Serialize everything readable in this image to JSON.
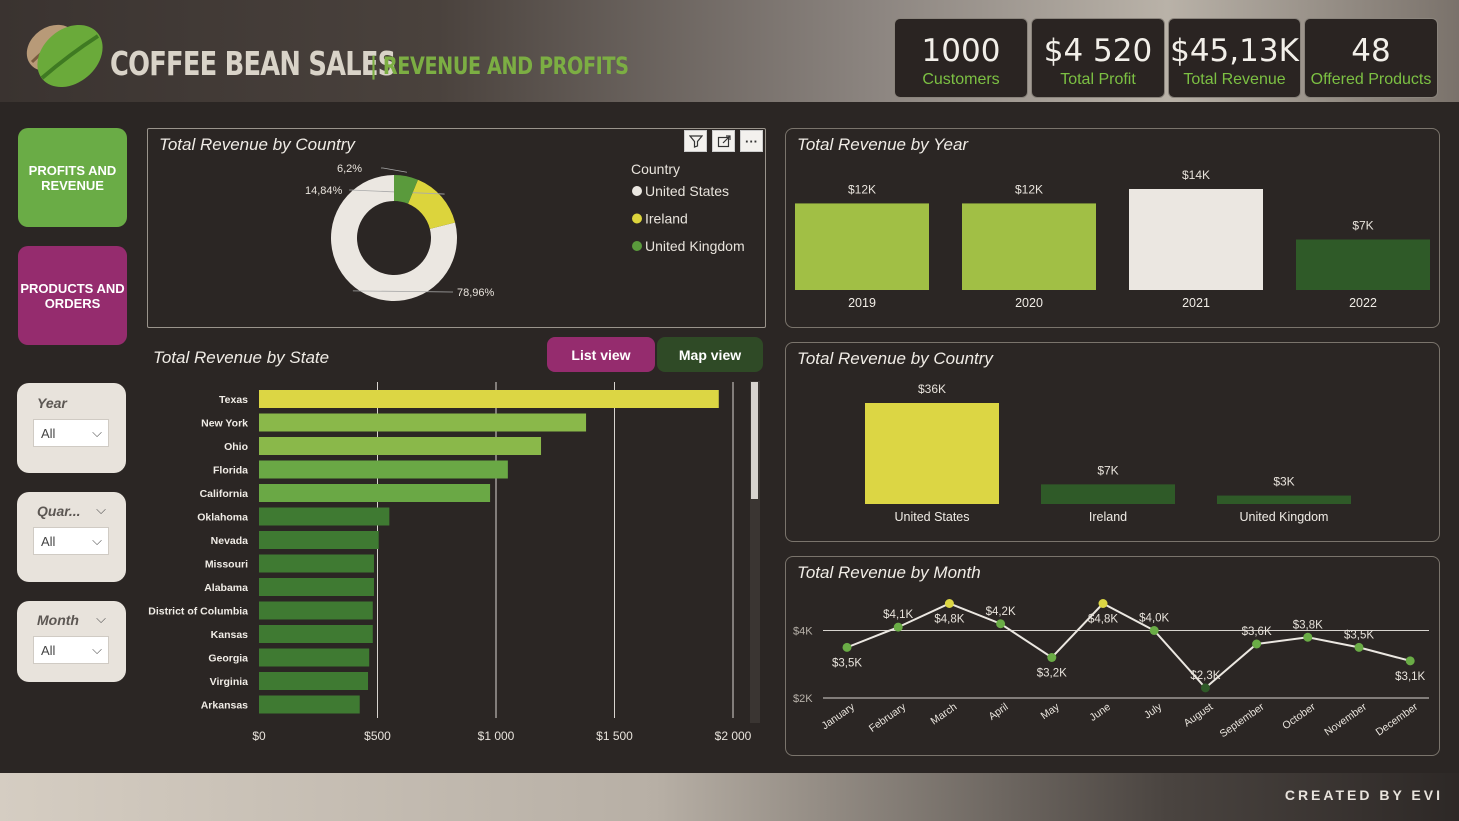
{
  "header": {
    "title": "COFFEE BEAN SALES",
    "subtitle": "| REVENUE AND PROFITS",
    "kpis": [
      {
        "value": "1000",
        "label": "Customers"
      },
      {
        "value": "$4 520",
        "label": "Total Profit"
      },
      {
        "value": "$45,13K",
        "label": "Total Revenue"
      },
      {
        "value": "48",
        "label": "Offered Products"
      }
    ]
  },
  "nav": {
    "profits_revenue": "PROFITS AND REVENUE",
    "products_orders": "PRODUCTS AND ORDERS"
  },
  "slicers": {
    "year": {
      "label": "Year",
      "value": "All"
    },
    "quarter": {
      "label": "Quar...",
      "value": "All"
    },
    "month": {
      "label": "Month",
      "value": "All"
    }
  },
  "donut": {
    "title": "Total Revenue by Country",
    "legend_title": "Country",
    "items": [
      {
        "name": "United States",
        "pct": 78.96,
        "label": "78,96%",
        "color": "#ebe7e1"
      },
      {
        "name": "Ireland",
        "pct": 14.84,
        "label": "14,84%",
        "color": "#dcd43c"
      },
      {
        "name": "United Kingdom",
        "pct": 6.2,
        "label": "6,2%",
        "color": "#5a9a3c"
      }
    ]
  },
  "state": {
    "title": "Total Revenue by State",
    "list_view": "List view",
    "map_view": "Map view"
  },
  "year_chart": {
    "title": "Total Revenue by Year"
  },
  "country_chart": {
    "title": "Total Revenue by Country"
  },
  "month_chart": {
    "title": "Total Revenue by Month"
  },
  "footer": {
    "credit": "CREATED BY EVI"
  },
  "chart_data": [
    {
      "type": "pie",
      "title": "Total Revenue by Country",
      "categories": [
        "United States",
        "Ireland",
        "United Kingdom"
      ],
      "values": [
        78.96,
        14.84,
        6.2
      ],
      "legend": "right"
    },
    {
      "type": "bar",
      "orientation": "horizontal",
      "title": "Total Revenue by State",
      "categories": [
        "Texas",
        "New York",
        "Ohio",
        "Florida",
        "California",
        "Oklahoma",
        "Nevada",
        "Missouri",
        "Alabama",
        "District of Columbia",
        "Kansas",
        "Georgia",
        "Virginia",
        "Arkansas"
      ],
      "values": [
        1940,
        1380,
        1190,
        1050,
        975,
        550,
        505,
        485,
        485,
        480,
        480,
        465,
        460,
        425
      ],
      "xlim": [
        0,
        2000
      ],
      "xticks": [
        "$0",
        "$500",
        "$1 000",
        "$1 500",
        "$2 000"
      ],
      "grid": true
    },
    {
      "type": "bar",
      "title": "Total Revenue by Year",
      "categories": [
        "2019",
        "2020",
        "2021",
        "2022"
      ],
      "values": [
        12,
        12,
        14,
        7
      ],
      "data_labels": [
        "$12K",
        "$12K",
        "$14K",
        "$7K"
      ],
      "colors": [
        "#a1bf45",
        "#a1bf45",
        "#ebe7e1",
        "#2f5a28"
      ]
    },
    {
      "type": "bar",
      "title": "Total Revenue by Country",
      "categories": [
        "United States",
        "Ireland",
        "United Kingdom"
      ],
      "values": [
        36,
        7,
        3
      ],
      "data_labels": [
        "$36K",
        "$7K",
        "$3K"
      ],
      "colors": [
        "#dcd644",
        "#2f5a28",
        "#2f5a28"
      ]
    },
    {
      "type": "line",
      "title": "Total Revenue by Month",
      "categories": [
        "January",
        "February",
        "March",
        "April",
        "May",
        "June",
        "July",
        "August",
        "September",
        "October",
        "November",
        "December"
      ],
      "values": [
        3.5,
        4.1,
        4.8,
        4.2,
        3.2,
        4.8,
        4.0,
        2.3,
        3.6,
        3.8,
        3.5,
        3.1
      ],
      "data_labels": [
        "$3,5K",
        "$4,1K",
        "$4,8K",
        "$4,2K",
        "$3,2K",
        "$4,8K",
        "$4,0K",
        "$2,3K",
        "$3,6K",
        "$3,8K",
        "$3,5K",
        "$3,1K"
      ],
      "yticks": [
        "$2K",
        "$4K"
      ],
      "ylim": [
        2,
        4
      ]
    }
  ]
}
